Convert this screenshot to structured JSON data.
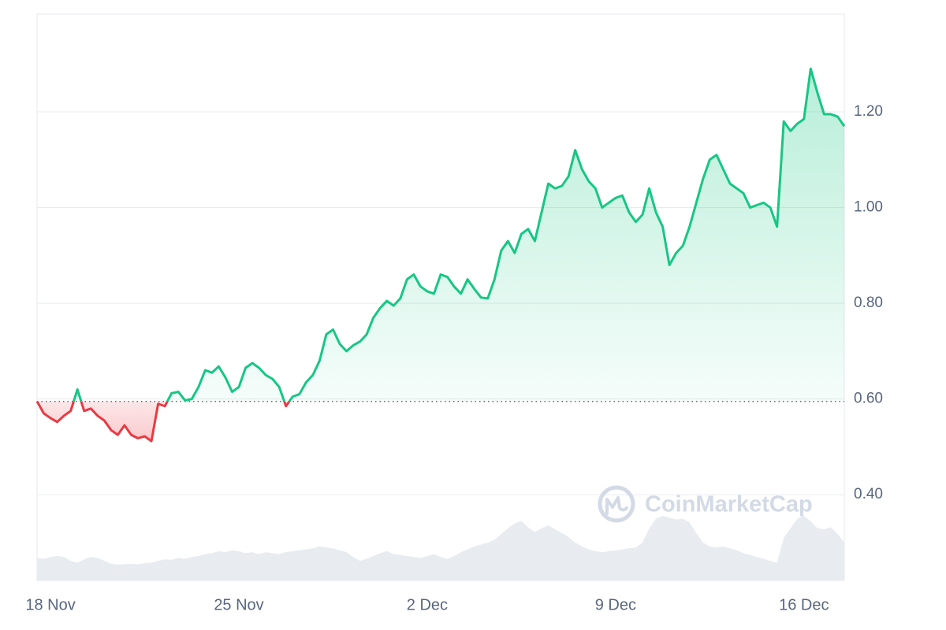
{
  "chart_data": {
    "type": "line",
    "categories": [
      null,
      null,
      "18 Nov",
      null,
      null,
      null,
      null,
      null,
      null,
      null,
      null,
      null,
      null,
      null,
      null,
      null,
      null,
      null,
      null,
      null,
      null,
      null,
      null,
      null,
      null,
      null,
      null,
      null,
      null,
      null,
      "25 Nov",
      null,
      null,
      null,
      null,
      null,
      null,
      null,
      null,
      null,
      null,
      null,
      null,
      null,
      null,
      null,
      null,
      null,
      null,
      null,
      null,
      null,
      null,
      null,
      null,
      null,
      null,
      null,
      "2 Dec",
      null,
      null,
      null,
      null,
      null,
      null,
      null,
      null,
      null,
      null,
      null,
      null,
      null,
      null,
      null,
      null,
      null,
      null,
      null,
      null,
      null,
      null,
      null,
      null,
      null,
      null,
      null,
      "9 Dec",
      null,
      null,
      null,
      null,
      null,
      null,
      null,
      null,
      null,
      null,
      null,
      null,
      null,
      null,
      null,
      null,
      null,
      null,
      null,
      null,
      null,
      null,
      null,
      null,
      null,
      null,
      null,
      "16 Dec",
      null,
      null,
      null,
      null,
      null,
      null
    ],
    "values": [
      0.595,
      0.57,
      0.56,
      0.552,
      0.565,
      0.575,
      0.62,
      0.575,
      0.58,
      0.565,
      0.555,
      0.535,
      0.525,
      0.545,
      0.525,
      0.518,
      0.522,
      0.512,
      0.59,
      0.585,
      0.612,
      0.615,
      0.597,
      0.6,
      0.625,
      0.66,
      0.655,
      0.668,
      0.645,
      0.615,
      0.625,
      0.665,
      0.675,
      0.665,
      0.65,
      0.642,
      0.625,
      0.585,
      0.605,
      0.61,
      0.635,
      0.65,
      0.68,
      0.735,
      0.745,
      0.715,
      0.7,
      0.712,
      0.72,
      0.735,
      0.77,
      0.79,
      0.805,
      0.795,
      0.81,
      0.85,
      0.86,
      0.835,
      0.825,
      0.82,
      0.86,
      0.855,
      0.835,
      0.82,
      0.85,
      0.83,
      0.812,
      0.81,
      0.85,
      0.91,
      0.93,
      0.905,
      0.945,
      0.955,
      0.93,
      0.99,
      1.05,
      1.04,
      1.045,
      1.065,
      1.12,
      1.08,
      1.055,
      1.04,
      1.0,
      1.01,
      1.02,
      1.025,
      0.99,
      0.97,
      0.985,
      1.04,
      0.99,
      0.96,
      0.88,
      0.905,
      0.92,
      0.96,
      1.01,
      1.06,
      1.1,
      1.11,
      1.08,
      1.05,
      1.04,
      1.03,
      1.0,
      1.005,
      1.01,
      1.0,
      0.96,
      1.18,
      1.16,
      1.175,
      1.185,
      1.29,
      1.24,
      1.195,
      1.195,
      1.19,
      1.17
    ],
    "color": "#16c784",
    "negative_color": "#ea3943",
    "baseline": 0.595,
    "volume": {
      "color": "#e8ecf1",
      "values": [
        0.268,
        0.266,
        0.27,
        0.272,
        0.27,
        0.262,
        0.258,
        0.265,
        0.27,
        0.268,
        0.262,
        0.256,
        0.254,
        0.255,
        0.256,
        0.255,
        0.257,
        0.258,
        0.262,
        0.265,
        0.264,
        0.268,
        0.266,
        0.27,
        0.272,
        0.276,
        0.278,
        0.282,
        0.28,
        0.284,
        0.282,
        0.278,
        0.28,
        0.276,
        0.28,
        0.278,
        0.276,
        0.28,
        0.282,
        0.284,
        0.286,
        0.288,
        0.292,
        0.29,
        0.288,
        0.284,
        0.28,
        0.27,
        0.262,
        0.266,
        0.272,
        0.278,
        0.282,
        0.276,
        0.274,
        0.272,
        0.27,
        0.268,
        0.272,
        0.276,
        0.27,
        0.266,
        0.272,
        0.28,
        0.286,
        0.292,
        0.296,
        0.3,
        0.306,
        0.318,
        0.33,
        0.34,
        0.345,
        0.332,
        0.322,
        0.33,
        0.336,
        0.328,
        0.32,
        0.312,
        0.3,
        0.292,
        0.286,
        0.282,
        0.28,
        0.282,
        0.284,
        0.286,
        0.288,
        0.29,
        0.3,
        0.33,
        0.35,
        0.356,
        0.352,
        0.348,
        0.35,
        0.342,
        0.32,
        0.3,
        0.292,
        0.29,
        0.292,
        0.288,
        0.284,
        0.278,
        0.274,
        0.27,
        0.266,
        0.262,
        0.258,
        0.31,
        0.33,
        0.35,
        0.356,
        0.345,
        0.33,
        0.328,
        0.332,
        0.318,
        0.3
      ]
    },
    "ylim": [
      0.221,
      1.404
    ],
    "yticks": [
      {
        "value": 0.4,
        "label": "0.40"
      },
      {
        "value": 0.6,
        "label": "0.60"
      },
      {
        "value": 0.8,
        "label": "0.80"
      },
      {
        "value": 1.0,
        "label": "1.00"
      },
      {
        "value": 1.2,
        "label": "1.20"
      }
    ],
    "grid": true,
    "watermark": "CoinMarketCap"
  }
}
